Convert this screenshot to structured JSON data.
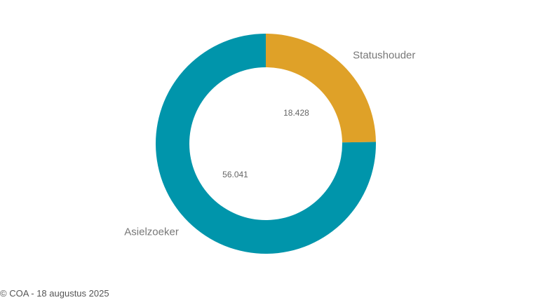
{
  "chart_data": {
    "type": "pie",
    "donut": true,
    "categories": [
      "Statushouder",
      "Asielzoeker"
    ],
    "values": [
      18428,
      56041
    ],
    "value_labels": [
      "18.428",
      "56.041"
    ],
    "colors": [
      "#DFA128",
      "#0095AB"
    ],
    "legend": "none"
  },
  "footer": {
    "source": "© COA - 18 augustus 2025"
  }
}
